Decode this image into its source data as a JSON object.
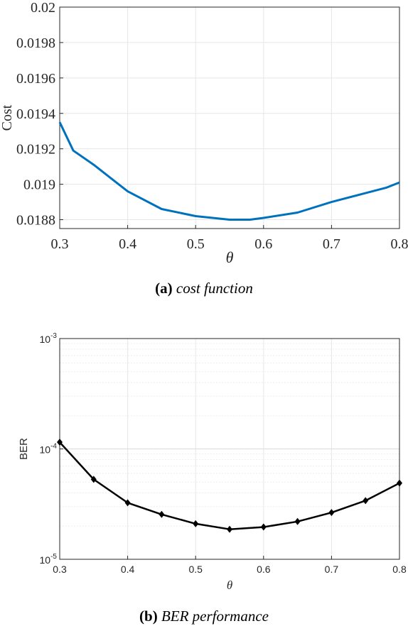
{
  "figure": {
    "caption_a": {
      "label": "(a)",
      "text": "cost function"
    },
    "caption_b": {
      "label": "(b)",
      "text": "BER performance"
    }
  },
  "chart_data": [
    {
      "id": "a",
      "type": "line",
      "xlabel": "θ",
      "ylabel": "Cost",
      "xlim": [
        0.3,
        0.8
      ],
      "ylim": [
        0.01875,
        0.02
      ],
      "yscale": "linear",
      "grid": true,
      "xticks": [
        "0.3",
        "0.4",
        "0.5",
        "0.6",
        "0.7",
        "0.8"
      ],
      "xtick_values": [
        0.3,
        0.4,
        0.5,
        0.6,
        0.7,
        0.8
      ],
      "yticks": [
        "0.0188",
        "0.019",
        "0.0192",
        "0.0194",
        "0.0196",
        "0.0198",
        "0.02"
      ],
      "ytick_values": [
        0.0188,
        0.019,
        0.0192,
        0.0194,
        0.0196,
        0.0198,
        0.02
      ],
      "colors": {
        "line": "#0072BD",
        "grid": "#e6e6e6",
        "axis": "#262626"
      },
      "series": [
        {
          "x": [
            0.3,
            0.32,
            0.35,
            0.4,
            0.45,
            0.5,
            0.55,
            0.58,
            0.6,
            0.65,
            0.7,
            0.75,
            0.78,
            0.8
          ],
          "y": [
            0.01935,
            0.01919,
            0.01911,
            0.01896,
            0.01886,
            0.01882,
            0.0188,
            0.0188,
            0.01881,
            0.01884,
            0.0189,
            0.01895,
            0.01898,
            0.01901
          ]
        }
      ]
    },
    {
      "id": "b",
      "type": "line",
      "xlabel": "θ",
      "ylabel": "BER",
      "xlim": [
        0.3,
        0.8
      ],
      "ylim": [
        1e-05,
        0.001
      ],
      "yscale": "log",
      "grid": true,
      "xticks": [
        "0.3",
        "0.4",
        "0.5",
        "0.6",
        "0.7",
        "0.8"
      ],
      "xtick_values": [
        0.3,
        0.4,
        0.5,
        0.6,
        0.7,
        0.8
      ],
      "ytick_labels": [
        {
          "base": "10",
          "exp": "-5",
          "value": 1e-05
        },
        {
          "base": "10",
          "exp": "-4",
          "value": 0.0001
        },
        {
          "base": "10",
          "exp": "-3",
          "value": 0.001
        }
      ],
      "colors": {
        "line": "#000000",
        "grid": "#e6e6e6",
        "axis": "#262626"
      },
      "marker": "diamond",
      "series": [
        {
          "x": [
            0.3,
            0.35,
            0.4,
            0.45,
            0.5,
            0.55,
            0.6,
            0.65,
            0.7,
            0.75,
            0.8
          ],
          "y": [
            0.000115,
            5.3e-05,
            3.25e-05,
            2.55e-05,
            2.1e-05,
            1.87e-05,
            1.96e-05,
            2.2e-05,
            2.65e-05,
            3.4e-05,
            4.9e-05
          ]
        }
      ]
    }
  ]
}
